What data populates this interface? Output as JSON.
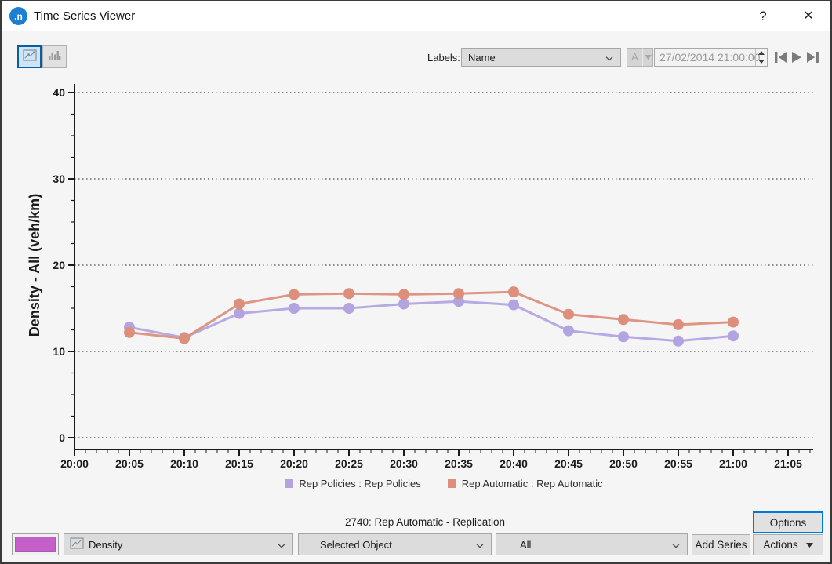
{
  "window": {
    "title": "Time Series Viewer",
    "logo_text": ".n",
    "help_label": "?",
    "close_label": "✕"
  },
  "toolbar": {
    "line_chart_toggle_icon": "line-chart-icon",
    "bar_chart_toggle_icon": "bar-chart-icon",
    "labels_caption": "Labels:",
    "labels_value": "Name",
    "font_button_label": "A",
    "datetime_value": "27/02/2014 21:00:00",
    "nav_icons": [
      "skip-to-start-icon",
      "play-icon",
      "skip-to-end-icon"
    ]
  },
  "chart_data": {
    "type": "line",
    "title": "",
    "xlabel": "",
    "ylabel": "Density - All (veh/km)",
    "ylim": [
      0,
      40
    ],
    "y_ticks": [
      0,
      10,
      20,
      30,
      40
    ],
    "x_tick_labels": [
      "20:00",
      "20:05",
      "20:10",
      "20:15",
      "20:20",
      "20:25",
      "20:30",
      "20:35",
      "20:40",
      "20:45",
      "20:50",
      "20:55",
      "21:00",
      "21:05"
    ],
    "grid": "dotted-horizontal",
    "legend_position": "bottom",
    "x": [
      "20:05",
      "20:10",
      "20:15",
      "20:20",
      "20:25",
      "20:30",
      "20:35",
      "20:40",
      "20:45",
      "20:50",
      "20:55",
      "21:00"
    ],
    "series": [
      {
        "name": "Rep Policies : Rep Policies",
        "color": "#b3a4e0",
        "values": [
          12.8,
          11.6,
          14.4,
          15.0,
          15.0,
          15.5,
          15.8,
          15.4,
          12.4,
          11.7,
          11.2,
          11.8
        ]
      },
      {
        "name": "Rep Automatic : Rep Automatic",
        "color": "#dd8f7c",
        "values": [
          12.2,
          11.5,
          15.5,
          16.6,
          16.7,
          16.6,
          16.7,
          16.9,
          14.3,
          13.7,
          13.1,
          13.4
        ]
      }
    ]
  },
  "status_text": "2740: Rep Automatic - Replication",
  "bottom_bar": {
    "series_color": "#c45fc9",
    "density_combo_value": "Density",
    "density_combo_icon": "line-chart-icon",
    "object_combo_value": "Selected Object",
    "aggregation_combo_value": "All",
    "add_series_label": "Add Series",
    "options_label": "Options",
    "actions_label": "Actions"
  }
}
